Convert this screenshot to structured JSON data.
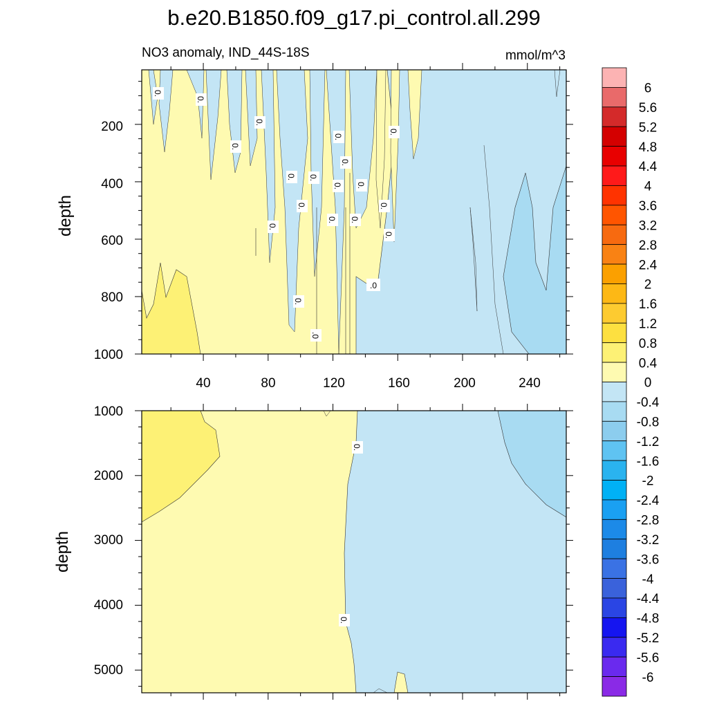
{
  "chart_data": {
    "type": "contour",
    "title": "b.e20.B1850.f09_g17.pi_control.all.299",
    "subtitle_left": "NO3 anomaly, IND_44S-18S",
    "units": "mmol/m^3",
    "top_panel": {
      "xlim": [
        2,
        264
      ],
      "ylim": [
        1000,
        0
      ],
      "x_ticks": [
        "40",
        "80",
        "120",
        "160",
        "200",
        "240"
      ],
      "y_ticks": [
        "200",
        "400",
        "600",
        "800",
        "1000"
      ],
      "ylabel": "depth",
      "contour_labels": [
        "0.",
        "0.",
        "0.",
        "0.",
        "0.",
        "0.",
        "0.",
        "0.",
        "0.",
        "0.",
        "0.",
        "0.",
        "0.",
        "0.",
        "0.",
        "0.",
        "0.",
        "0.",
        ".0"
      ]
    },
    "bottom_panel": {
      "ylim": [
        5350,
        1000
      ],
      "y_ticks": [
        "1000",
        "2000",
        "3000",
        "4000",
        "5000"
      ],
      "ylabel": "depth",
      "contour_labels": [
        "0.",
        "0."
      ]
    },
    "colorbar": {
      "labels": [
        "6",
        "5.6",
        "5.2",
        "4.8",
        "4.4",
        "4",
        "3.6",
        "3.2",
        "2.8",
        "2.4",
        "2",
        "1.6",
        "1.2",
        "0.8",
        "0.4",
        "0",
        "-0.4",
        "-0.8",
        "-1.2",
        "-1.6",
        "-2",
        "-2.4",
        "-2.8",
        "-3.2",
        "-3.6",
        "-4",
        "-4.4",
        "-4.8",
        "-5.2",
        "-5.6",
        "-6"
      ],
      "colors": [
        "#fcb3b3",
        "#e96a6a",
        "#d42a2a",
        "#d40000",
        "#e80000",
        "#ff1a1a",
        "#ff3300",
        "#ff5500",
        "#f76a10",
        "#f98214",
        "#fba000",
        "#fdb815",
        "#fdcb30",
        "#fde040",
        "#fdf175",
        "#fefab1",
        "#c3e5f5",
        "#a8dbf2",
        "#8ccdee",
        "#5fc3f2",
        "#2ab3ef",
        "#00b1f5",
        "#1aa0f2",
        "#1c8ae8",
        "#1e7fe0",
        "#3a72e4",
        "#3a62db",
        "#2a45e4",
        "#1515f0",
        "#3a2af0",
        "#6a2aee",
        "#8a2ae6"
      ]
    },
    "fill_colors": {
      "positive": "#fefab1",
      "positive_strong": "#fdf175",
      "negative": "#c3e5f5",
      "negative_strong": "#a8dbf2"
    }
  }
}
